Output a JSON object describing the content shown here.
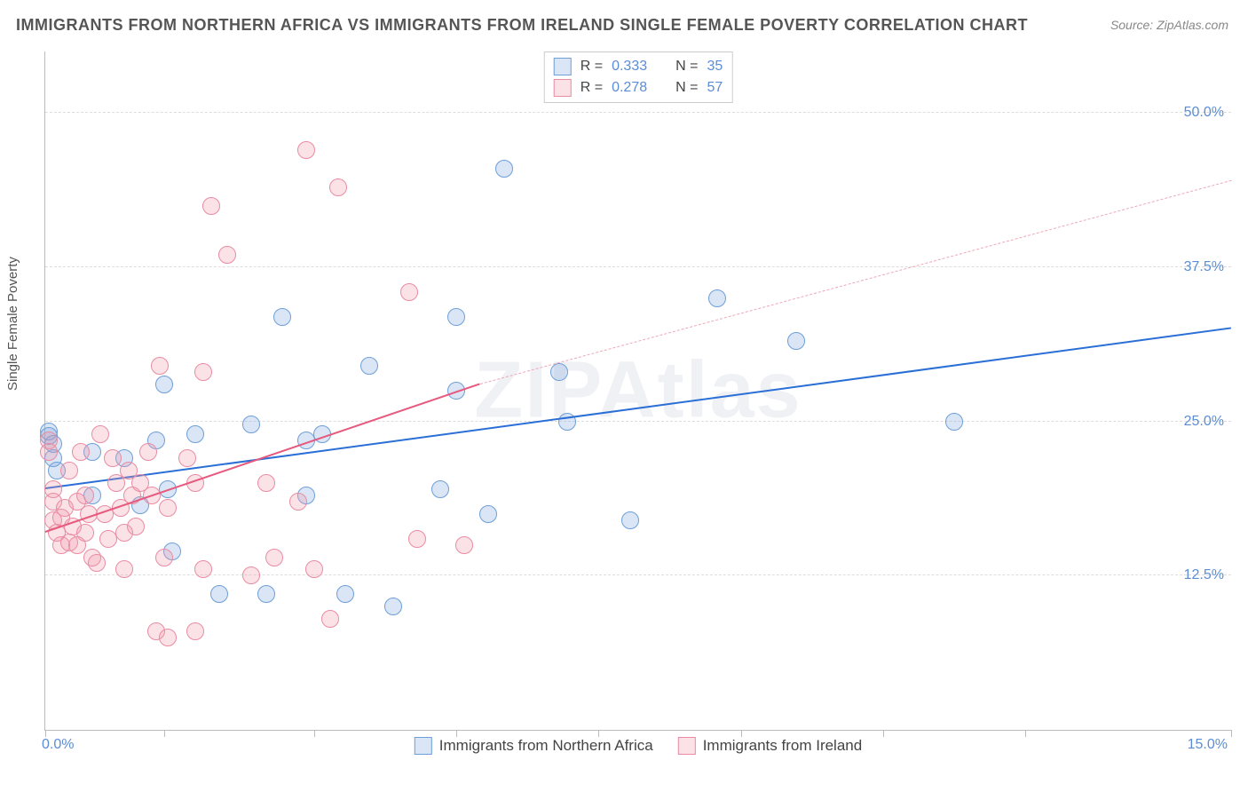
{
  "title": "IMMIGRANTS FROM NORTHERN AFRICA VS IMMIGRANTS FROM IRELAND SINGLE FEMALE POVERTY CORRELATION CHART",
  "source": "Source: ZipAtlas.com",
  "watermark": "ZIPAtlas",
  "ylabel": "Single Female Poverty",
  "chart": {
    "type": "scatter",
    "xlim": [
      0,
      15
    ],
    "ylim": [
      0,
      55
    ],
    "xtick_positions": [
      0,
      1.5,
      3.4,
      5.2,
      7.0,
      8.8,
      10.6,
      12.4,
      15
    ],
    "xtick_labels": {
      "0": "0.0%",
      "15": "15.0%"
    },
    "yticks": [
      12.5,
      25.0,
      37.5,
      50.0
    ],
    "ytick_labels": [
      "12.5%",
      "25.0%",
      "37.5%",
      "50.0%"
    ],
    "grid_color": "#dddddd",
    "background_color": "#ffffff",
    "axis_color": "#bbbbbb",
    "tick_label_color": "#5b8dd6",
    "point_radius": 9,
    "point_stroke_width": 1,
    "series": [
      {
        "name": "Immigrants from Northern Africa",
        "color_fill": "rgba(121,163,220,0.28)",
        "color_stroke": "#6e9fd8",
        "R": "0.333",
        "N": "35",
        "trend": {
          "x1": 0,
          "y1": 19.5,
          "x2": 15,
          "y2": 32.5,
          "color": "#2a6fd6",
          "width": 2.2,
          "dash": "solid"
        },
        "points": [
          [
            0.05,
            24.2
          ],
          [
            0.05,
            23.8
          ],
          [
            0.1,
            22.0
          ],
          [
            0.1,
            23.2
          ],
          [
            0.15,
            21.0
          ],
          [
            0.6,
            22.5
          ],
          [
            0.6,
            19.0
          ],
          [
            1.0,
            22.0
          ],
          [
            1.2,
            18.2
          ],
          [
            1.4,
            23.5
          ],
          [
            1.5,
            28.0
          ],
          [
            1.55,
            19.5
          ],
          [
            1.6,
            14.5
          ],
          [
            1.9,
            24.0
          ],
          [
            2.2,
            11.0
          ],
          [
            2.6,
            24.8
          ],
          [
            2.8,
            11.0
          ],
          [
            3.0,
            33.5
          ],
          [
            3.3,
            19.0
          ],
          [
            3.3,
            23.5
          ],
          [
            3.5,
            24.0
          ],
          [
            3.8,
            11.0
          ],
          [
            4.1,
            29.5
          ],
          [
            4.4,
            10.0
          ],
          [
            5.0,
            19.5
          ],
          [
            5.2,
            27.5
          ],
          [
            5.2,
            33.5
          ],
          [
            5.6,
            17.5
          ],
          [
            5.8,
            45.5
          ],
          [
            6.5,
            29.0
          ],
          [
            6.6,
            25.0
          ],
          [
            7.4,
            17.0
          ],
          [
            8.5,
            35.0
          ],
          [
            9.5,
            31.5
          ],
          [
            11.5,
            25.0
          ]
        ]
      },
      {
        "name": "Immigrants from Ireland",
        "color_fill": "rgba(240,150,170,0.28)",
        "color_stroke": "#e98ca3",
        "R": "0.278",
        "N": "57",
        "trend_solid": {
          "x1": 0,
          "y1": 16.0,
          "x2": 5.5,
          "y2": 28.0,
          "color": "#e65a7e",
          "width": 2.2,
          "dash": "solid"
        },
        "trend_dashed": {
          "x1": 5.5,
          "y1": 28.0,
          "x2": 15,
          "y2": 44.5,
          "color": "#eda8b8",
          "width": 1.4,
          "dash": "dashed"
        },
        "points": [
          [
            0.05,
            23.5
          ],
          [
            0.05,
            22.5
          ],
          [
            0.1,
            19.5
          ],
          [
            0.1,
            18.5
          ],
          [
            0.1,
            17.0
          ],
          [
            0.15,
            16.0
          ],
          [
            0.2,
            15.0
          ],
          [
            0.2,
            17.2
          ],
          [
            0.25,
            18.0
          ],
          [
            0.3,
            15.2
          ],
          [
            0.3,
            21.0
          ],
          [
            0.35,
            16.5
          ],
          [
            0.4,
            18.5
          ],
          [
            0.4,
            15.0
          ],
          [
            0.45,
            22.5
          ],
          [
            0.5,
            19.0
          ],
          [
            0.5,
            16.0
          ],
          [
            0.55,
            17.5
          ],
          [
            0.6,
            14.0
          ],
          [
            0.65,
            13.5
          ],
          [
            0.7,
            24.0
          ],
          [
            0.75,
            17.5
          ],
          [
            0.8,
            15.5
          ],
          [
            0.85,
            22.0
          ],
          [
            0.9,
            20.0
          ],
          [
            0.95,
            18.0
          ],
          [
            1.0,
            13.0
          ],
          [
            1.0,
            16.0
          ],
          [
            1.05,
            21.0
          ],
          [
            1.1,
            19.0
          ],
          [
            1.15,
            16.5
          ],
          [
            1.2,
            20.0
          ],
          [
            1.3,
            22.5
          ],
          [
            1.35,
            19.0
          ],
          [
            1.4,
            8.0
          ],
          [
            1.45,
            29.5
          ],
          [
            1.5,
            14.0
          ],
          [
            1.55,
            18.0
          ],
          [
            1.55,
            7.5
          ],
          [
            1.8,
            22.0
          ],
          [
            1.9,
            20.0
          ],
          [
            1.9,
            8.0
          ],
          [
            2.0,
            29.0
          ],
          [
            2.0,
            13.0
          ],
          [
            2.1,
            42.5
          ],
          [
            2.3,
            38.5
          ],
          [
            2.6,
            12.5
          ],
          [
            2.8,
            20.0
          ],
          [
            2.9,
            14.0
          ],
          [
            3.2,
            18.5
          ],
          [
            3.3,
            47.0
          ],
          [
            3.4,
            13.0
          ],
          [
            3.6,
            9.0
          ],
          [
            3.7,
            44.0
          ],
          [
            4.6,
            35.5
          ],
          [
            4.7,
            15.5
          ],
          [
            5.3,
            15.0
          ]
        ]
      }
    ]
  },
  "legend_top": {
    "r_label": "R =",
    "n_label": "N ="
  }
}
